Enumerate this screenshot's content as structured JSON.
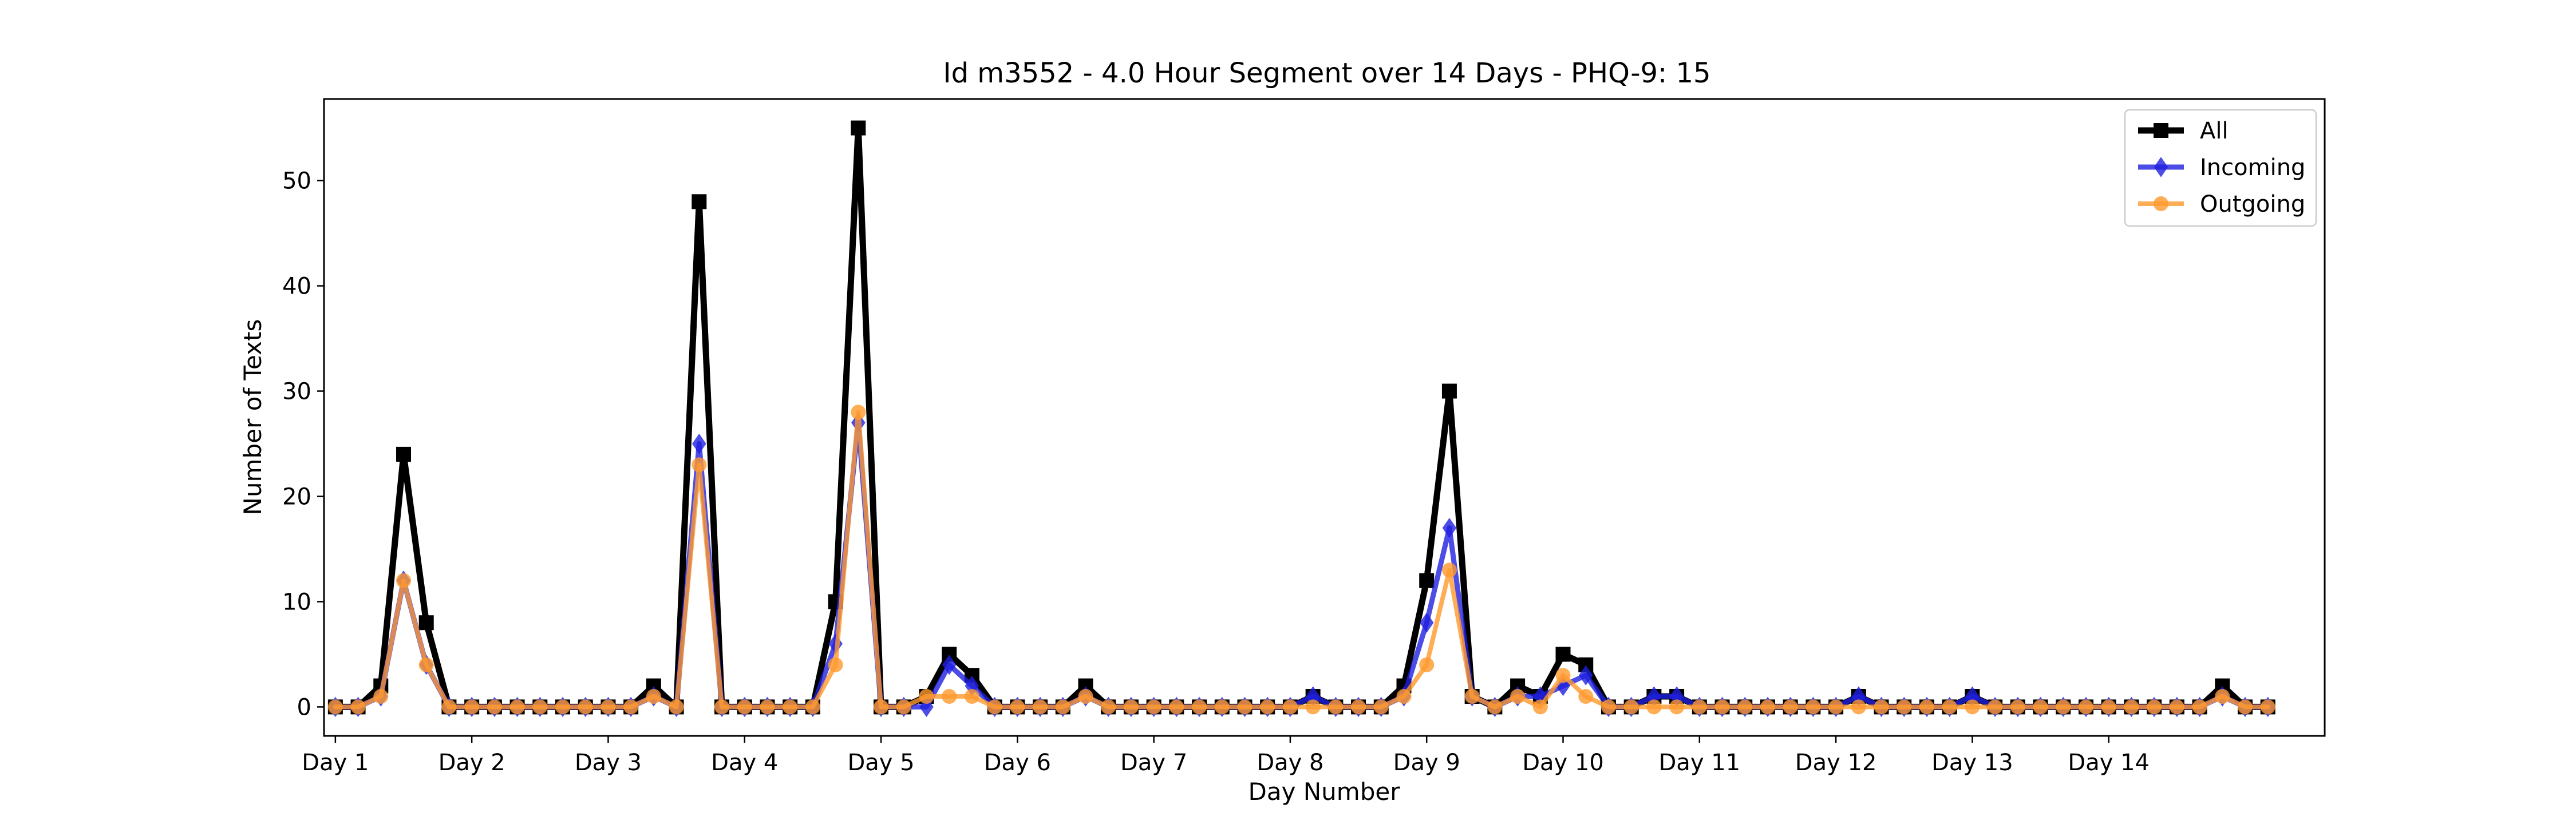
{
  "chart_data": {
    "type": "line",
    "title": "Id m3552 - 4.0 Hour Segment over 14 Days - PHQ-9: 15",
    "xlabel": "Day Number",
    "ylabel": "Number of Texts",
    "x_ticks": [
      "Day 1",
      "Day 2",
      "Day 3",
      "Day 4",
      "Day 5",
      "Day 6",
      "Day 7",
      "Day 8",
      "Day 9",
      "Day 10",
      "Day 11",
      "Day 12",
      "Day 13",
      "Day 14"
    ],
    "y_ticks": [
      0,
      10,
      20,
      30,
      40,
      50
    ],
    "ylim": [
      -2.75,
      57.75
    ],
    "xlim": [
      -0.5,
      87.5
    ],
    "grid": false,
    "legend_position": "top-right",
    "series": [
      {
        "name": "All",
        "color": "#000000",
        "marker": "square",
        "values": [
          0,
          0,
          2,
          24,
          8,
          0,
          0,
          0,
          0,
          0,
          0,
          0,
          0,
          0,
          2,
          0,
          48,
          0,
          0,
          0,
          0,
          0,
          10,
          55,
          0,
          0,
          1,
          5,
          3,
          0,
          0,
          0,
          0,
          2,
          0,
          0,
          0,
          0,
          0,
          0,
          0,
          0,
          0,
          1,
          0,
          0,
          0,
          2,
          12,
          30,
          1,
          0,
          2,
          1,
          5,
          4,
          0,
          0,
          1,
          1,
          0,
          0,
          0,
          0,
          0,
          0,
          0,
          1,
          0,
          0,
          0,
          0,
          1,
          0,
          0,
          0,
          0,
          0,
          0,
          0,
          0,
          0,
          0,
          2,
          0,
          0
        ]
      },
      {
        "name": "Incoming",
        "color": "#1f1fe0",
        "marker": "diamond",
        "values": [
          0,
          0,
          1,
          12,
          4,
          0,
          0,
          0,
          0,
          0,
          0,
          0,
          0,
          0,
          1,
          0,
          25,
          0,
          0,
          0,
          0,
          0,
          6,
          27,
          0,
          0,
          0,
          4,
          2,
          0,
          0,
          0,
          0,
          1,
          0,
          0,
          0,
          0,
          0,
          0,
          0,
          0,
          0,
          1,
          0,
          0,
          0,
          1,
          8,
          17,
          1,
          0,
          1,
          1,
          2,
          3,
          0,
          0,
          1,
          1,
          0,
          0,
          0,
          0,
          0,
          0,
          0,
          1,
          0,
          0,
          0,
          0,
          1,
          0,
          0,
          0,
          0,
          0,
          0,
          0,
          0,
          0,
          0,
          1,
          0,
          0
        ]
      },
      {
        "name": "Outgoing",
        "color": "#ff9a2e",
        "marker": "circle",
        "values": [
          0,
          0,
          1,
          12,
          4,
          0,
          0,
          0,
          0,
          0,
          0,
          0,
          0,
          0,
          1,
          0,
          23,
          0,
          0,
          0,
          0,
          0,
          4,
          28,
          0,
          0,
          1,
          1,
          1,
          0,
          0,
          0,
          0,
          1,
          0,
          0,
          0,
          0,
          0,
          0,
          0,
          0,
          0,
          0,
          0,
          0,
          0,
          1,
          4,
          13,
          1,
          0,
          1,
          0,
          3,
          1,
          0,
          0,
          0,
          0,
          0,
          0,
          0,
          0,
          0,
          0,
          0,
          0,
          0,
          0,
          0,
          0,
          0,
          0,
          0,
          0,
          0,
          0,
          0,
          0,
          0,
          0,
          0,
          1,
          0,
          0
        ]
      }
    ]
  }
}
